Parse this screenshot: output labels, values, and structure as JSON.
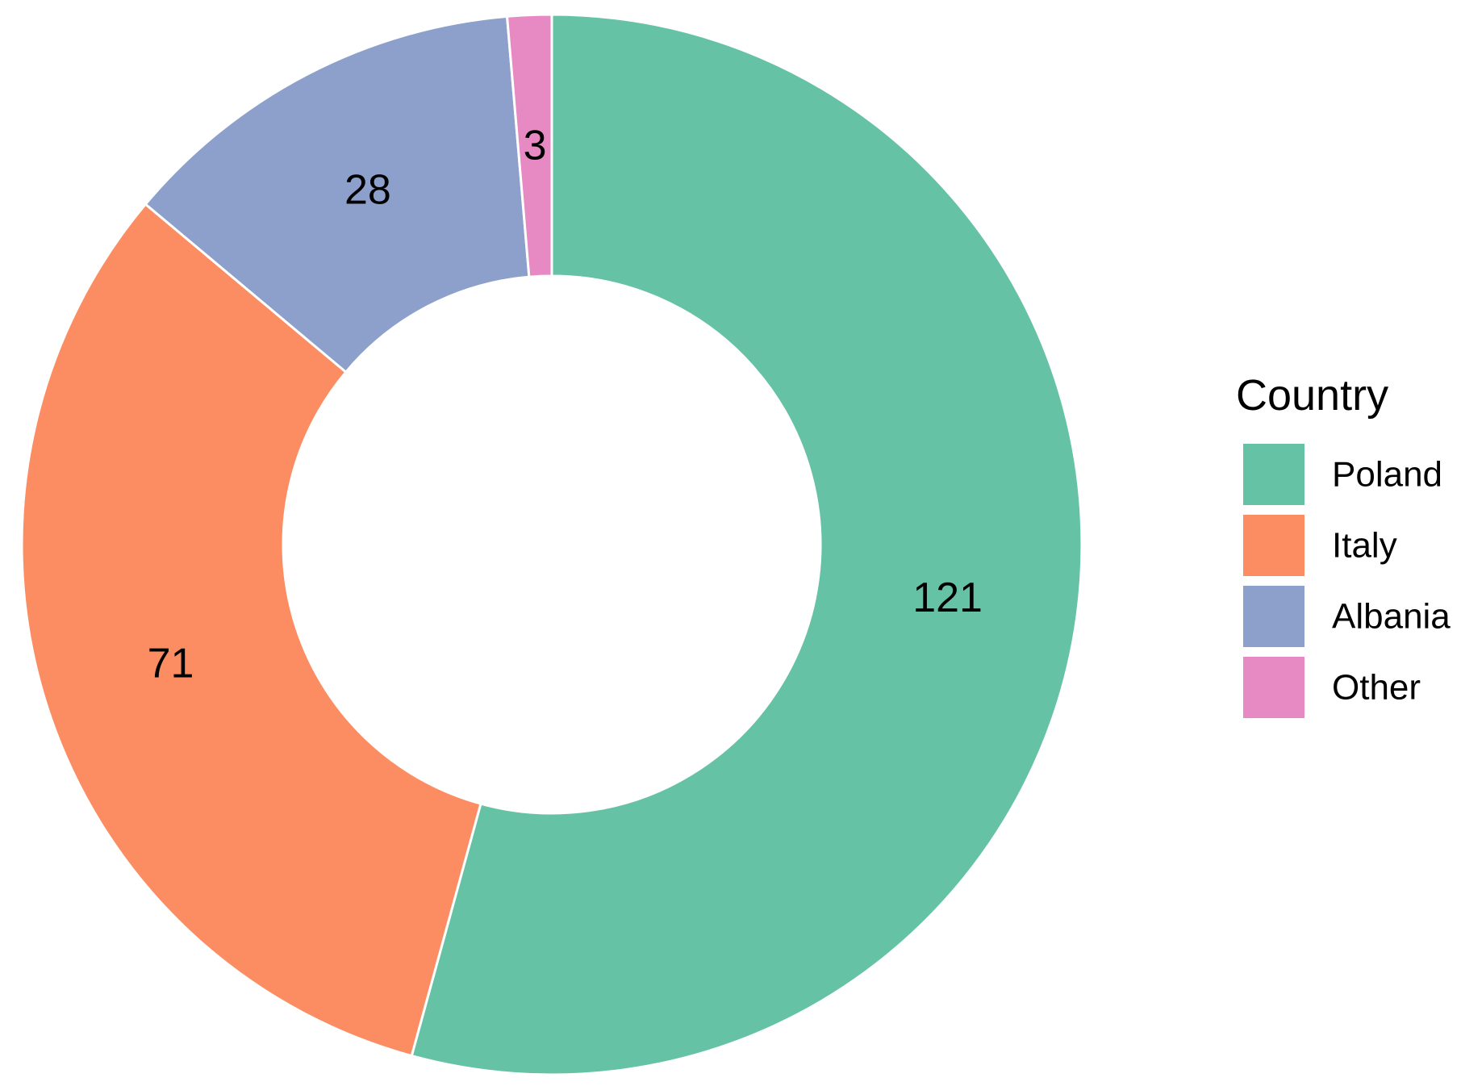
{
  "chart_data": {
    "type": "pie",
    "variant": "donut",
    "legend": {
      "title": "Country",
      "position": "right"
    },
    "categories": [
      "Poland",
      "Italy",
      "Albania",
      "Other"
    ],
    "values": [
      121,
      71,
      28,
      3
    ],
    "data_labels": [
      "121",
      "71",
      "28",
      "3"
    ],
    "colors": [
      "#66c2a5",
      "#fc8d62",
      "#8da0cb",
      "#e78ac3"
    ],
    "start_angle": "12 o'clock",
    "direction": "clockwise"
  }
}
